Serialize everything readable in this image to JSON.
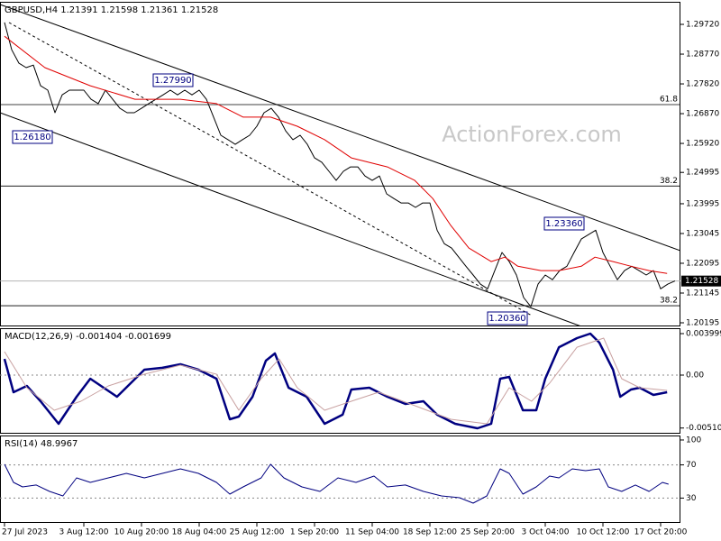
{
  "chart_data": [
    {
      "type": "line",
      "title": "GBPUSD,H4  1.21391 1.21598 1.21361 1.21528",
      "watermark": "ActionForex.com",
      "xlim": [
        -0.625,
        93.75
      ],
      "ylim": [
        1.2008,
        1.3044
      ],
      "yticks": [
        {
          "value": 1.2972,
          "label": "1.29720"
        },
        {
          "value": 1.2877,
          "label": "1.28770"
        },
        {
          "value": 1.2782,
          "label": "1.27820"
        },
        {
          "value": 1.2687,
          "label": "1.26870"
        },
        {
          "value": 1.2592,
          "label": "1.25920"
        },
        {
          "value": 1.24995,
          "label": "1.24995"
        },
        {
          "value": 1.23995,
          "label": "1.23995"
        },
        {
          "value": 1.23045,
          "label": "1.23045"
        },
        {
          "value": 1.22095,
          "label": "1.22095"
        },
        {
          "value": 1.21145,
          "label": "1.21145"
        },
        {
          "value": 1.20195,
          "label": "1.20195"
        }
      ],
      "levels": [
        {
          "value": 1.2716,
          "label": "61.8"
        },
        {
          "value": 1.2456,
          "label": "38.2"
        },
        {
          "value": 1.2074,
          "label": "38.2"
        }
      ],
      "price_marker": {
        "value": 1.21528,
        "label": "1.21528"
      },
      "annotations": [
        "1.27990",
        "1.26180",
        "1.23360",
        "1.20360"
      ],
      "series": [
        {
          "color": "#000000",
          "x": [
            0,
            1,
            2,
            3,
            4,
            5,
            6,
            7,
            8,
            9,
            10,
            11,
            12,
            13,
            14,
            15,
            16,
            17,
            18,
            19,
            20,
            21,
            22,
            23,
            24,
            25,
            26,
            27,
            28,
            29,
            30,
            31,
            32,
            33,
            34,
            35,
            36,
            37,
            38,
            39,
            40,
            41,
            42,
            43,
            44,
            45,
            46,
            47,
            48,
            49,
            50,
            51,
            52,
            53,
            54,
            55,
            56,
            57,
            58,
            59,
            60,
            61,
            62,
            63,
            64,
            65,
            66,
            67,
            68,
            69,
            70,
            71,
            72,
            73,
            74,
            75,
            76,
            77,
            78,
            79,
            80,
            81,
            82,
            83,
            84,
            85,
            86,
            87,
            88,
            89,
            90,
            91,
            92,
            93
          ],
          "values": [
            1.2978,
            1.2891,
            1.2848,
            1.2834,
            1.2842,
            1.2776,
            1.2762,
            1.269,
            1.2747,
            1.2762,
            1.2762,
            1.2762,
            1.2733,
            1.2719,
            1.2762,
            1.2733,
            1.2704,
            1.269,
            1.269,
            1.2704,
            1.2719,
            1.2733,
            1.2747,
            1.2762,
            1.2747,
            1.2762,
            1.2747,
            1.2762,
            1.2733,
            1.2676,
            1.2618,
            1.2604,
            1.2589,
            1.2604,
            1.2618,
            1.2647,
            1.269,
            1.2704,
            1.2676,
            1.2632,
            1.2604,
            1.2618,
            1.2589,
            1.2546,
            1.2532,
            1.2503,
            1.2474,
            1.2503,
            1.2517,
            1.2517,
            1.2488,
            1.2474,
            1.2488,
            1.2431,
            1.2416,
            1.2402,
            1.2402,
            1.2388,
            1.2402,
            1.2402,
            1.2315,
            1.2272,
            1.2258,
            1.2229,
            1.22,
            1.2172,
            1.2143,
            1.2128,
            1.2186,
            1.2244,
            1.2215,
            1.2172,
            1.21,
            1.2071,
            1.2143,
            1.2172,
            1.2157,
            1.2186,
            1.22,
            1.2244,
            1.2287,
            1.2301,
            1.2315,
            1.2244,
            1.22,
            1.2157,
            1.2186,
            1.22,
            1.2186,
            1.2172,
            1.2186,
            1.2128,
            1.2143,
            1.2153
          ]
        },
        {
          "color": "#e00000",
          "x": [
            0,
            5.6,
            11.9,
            18.1,
            24.4,
            29.4,
            33.1,
            36.9,
            40.6,
            44.4,
            48.1,
            53.1,
            56.9,
            59.4,
            61.9,
            64.4,
            67.5,
            69.4,
            71.2,
            74.4,
            76.9,
            80,
            81.9,
            84.4,
            86.9,
            89.4,
            91.9
          ],
          "values": [
            1.2934,
            1.2834,
            1.2776,
            1.2733,
            1.2733,
            1.2719,
            1.2676,
            1.2676,
            1.2647,
            1.2604,
            1.2546,
            1.2517,
            1.2474,
            1.2416,
            1.233,
            1.2258,
            1.2215,
            1.2229,
            1.22,
            1.2186,
            1.2186,
            1.22,
            1.2229,
            1.2215,
            1.22,
            1.2186,
            1.2177
          ]
        }
      ]
    },
    {
      "type": "line",
      "title": "MACD(12,26,9) -0.001404 -0.001699",
      "xlim": [
        -0.625,
        93.75
      ],
      "ylim": [
        -0.00565,
        0.00452
      ],
      "yticks": [
        0.003999,
        {
          "value": 0,
          "label": "0.00"
        },
        -0.005103
      ],
      "levels": [
        0
      ],
      "series": [
        {
          "color": "#000080",
          "width": 2.5,
          "x": [
            0,
            1.25,
            3.1,
            5,
            7.5,
            10,
            11.9,
            13.75,
            15.6,
            17.5,
            19.4,
            21.9,
            24.4,
            26.9,
            29.4,
            31.25,
            32.5,
            34.4,
            36.25,
            37.5,
            39.4,
            41.9,
            44.4,
            46.9,
            48.1,
            50.6,
            53.1,
            55.6,
            58.1,
            60,
            62.5,
            65.6,
            67.5,
            68.75,
            70,
            71.9,
            73.75,
            75,
            76.9,
            79.4,
            81.25,
            82.5,
            84.4,
            85.4,
            86.9,
            88.1,
            90,
            91.9
          ],
          "values": [
            0.00156,
            -0.00165,
            -0.00104,
            -0.00252,
            -0.00469,
            -0.00209,
            -0.00035,
            -0.00122,
            -0.00209,
            -0.00078,
            0.00052,
            0.0007,
            0.00104,
            0.00052,
            -0.00035,
            -0.00426,
            -0.004,
            -0.00209,
            0.00139,
            0.00209,
            -0.00122,
            -0.00209,
            -0.00469,
            -0.00382,
            -0.00139,
            -0.00122,
            -0.00209,
            -0.00278,
            -0.00252,
            -0.00382,
            -0.00469,
            -0.00513,
            -0.00469,
            -0.00035,
            -0.00017,
            -0.00339,
            -0.00339,
            -0.00035,
            0.00269,
            0.00356,
            0.004,
            0.00313,
            0.00052,
            -0.00209,
            -0.00139,
            -0.00122,
            -0.00191,
            -0.00165
          ]
        },
        {
          "color": "#c8a0a0",
          "width": 1,
          "x": [
            0,
            3.1,
            6.9,
            10.6,
            14.4,
            19.4,
            24.4,
            29.4,
            32.5,
            35.6,
            38.1,
            40.6,
            44.4,
            48.1,
            51.9,
            56.9,
            61.9,
            66.9,
            70,
            73.1,
            75.6,
            79.4,
            83.1,
            85.6,
            88.1,
            91.9
          ],
          "values": [
            0.00226,
            -0.00122,
            -0.00339,
            -0.00252,
            -0.00104,
            9e-05,
            0.00096,
            9e-05,
            -0.00339,
            -0.00035,
            0.00156,
            -0.00122,
            -0.00339,
            -0.00252,
            -0.00165,
            -0.00295,
            -0.00426,
            -0.00469,
            -0.00122,
            -0.00252,
            -0.00078,
            0.00269,
            0.00356,
            -0.00035,
            -0.00122,
            -0.00148
          ]
        }
      ]
    },
    {
      "type": "line",
      "title": "RSI(14) 48.9967",
      "xlim": [
        -0.625,
        93.75
      ],
      "ylim": [
        0,
        105.4
      ],
      "yticks": [
        100,
        70,
        30
      ],
      "levels": [
        70,
        30
      ],
      "xticks": [
        {
          "value": 0,
          "label": "27 Jul 2023"
        },
        {
          "value": 11,
          "label": "3 Aug 12:00"
        },
        {
          "value": 19,
          "label": "10 Aug 20:00"
        },
        {
          "value": 27,
          "label": "18 Aug 04:00"
        },
        {
          "value": 35,
          "label": "25 Aug 12:00"
        },
        {
          "value": 43,
          "label": "1 Sep 20:00"
        },
        {
          "value": 51,
          "label": "11 Sep 04:00"
        },
        {
          "value": 59,
          "label": "18 Sep 12:00"
        },
        {
          "value": 67,
          "label": "25 Sep 20:00"
        },
        {
          "value": 75,
          "label": "3 Oct 04:00"
        },
        {
          "value": 83,
          "label": "10 Oct 12:00"
        },
        {
          "value": 91,
          "label": "17 Oct 20:00"
        }
      ],
      "series": [
        {
          "color": "#000080",
          "width": 1,
          "x": [
            0,
            1.25,
            2.5,
            4.4,
            6.25,
            8.1,
            10,
            11.9,
            14.4,
            16.9,
            19.4,
            21.9,
            24.4,
            26.9,
            29.4,
            31.25,
            33.1,
            35.6,
            36.9,
            38.75,
            41.25,
            43.75,
            46.25,
            48.75,
            51.25,
            53.1,
            55.6,
            58.1,
            60.6,
            63.1,
            65,
            66.9,
            68.75,
            70,
            71.9,
            73.75,
            75.6,
            76.9,
            78.75,
            80.6,
            82.5,
            83.75,
            85.6,
            87.5,
            89.4,
            91.25,
            92.1
          ],
          "values": [
            70.7,
            48.9,
            43.5,
            45.7,
            38,
            32.6,
            54.3,
            48.9,
            54.3,
            59.8,
            54.3,
            59.8,
            65.2,
            59.8,
            48.9,
            34.8,
            43.5,
            54.3,
            70.7,
            54.3,
            43.5,
            38,
            54.3,
            48.9,
            56.5,
            43.5,
            45.7,
            38,
            32.6,
            30.4,
            23.9,
            32.6,
            65.2,
            59.8,
            34.8,
            43.5,
            56.5,
            54.3,
            65.2,
            63,
            65.2,
            43.5,
            38,
            45.7,
            38,
            48.9,
            46.7
          ]
        }
      ]
    }
  ]
}
